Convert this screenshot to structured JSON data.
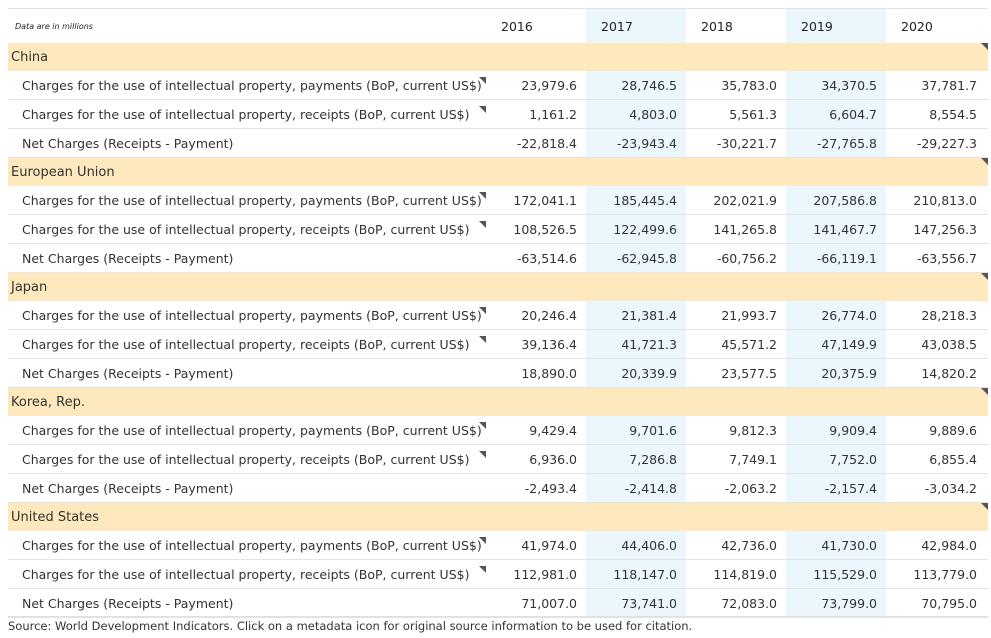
{
  "header": {
    "note": "Data are in millions",
    "years": [
      "2016",
      "2017",
      "2018",
      "2019",
      "2020"
    ]
  },
  "groups": [
    {
      "name": "China",
      "rows": [
        {
          "label": "Charges for the use of intellectual property, payments (BoP, current US$)",
          "values": [
            "23,979.6",
            "28,746.5",
            "35,783.0",
            "34,370.5",
            "37,781.7"
          ]
        },
        {
          "label": "Charges for the use of intellectual property, receipts (BoP, current US$)",
          "values": [
            "1,161.2",
            "4,803.0",
            "5,561.3",
            "6,604.7",
            "8,554.5"
          ]
        },
        {
          "label": "Net Charges (Receipts - Payment)",
          "values": [
            "-22,818.4",
            "-23,943.4",
            "-30,221.7",
            "-27,765.8",
            "-29,227.3"
          ]
        }
      ]
    },
    {
      "name": "European Union",
      "rows": [
        {
          "label": "Charges for the use of intellectual property, payments (BoP, current US$)",
          "values": [
            "172,041.1",
            "185,445.4",
            "202,021.9",
            "207,586.8",
            "210,813.0"
          ]
        },
        {
          "label": "Charges for the use of intellectual property, receipts (BoP, current US$)",
          "values": [
            "108,526.5",
            "122,499.6",
            "141,265.8",
            "141,467.7",
            "147,256.3"
          ]
        },
        {
          "label": "Net Charges (Receipts - Payment)",
          "values": [
            "-63,514.6",
            "-62,945.8",
            "-60,756.2",
            "-66,119.1",
            "-63,556.7"
          ]
        }
      ]
    },
    {
      "name": "Japan",
      "rows": [
        {
          "label": "Charges for the use of intellectual property, payments (BoP, current US$)",
          "values": [
            "20,246.4",
            "21,381.4",
            "21,993.7",
            "26,774.0",
            "28,218.3"
          ]
        },
        {
          "label": "Charges for the use of intellectual property, receipts (BoP, current US$)",
          "values": [
            "39,136.4",
            "41,721.3",
            "45,571.2",
            "47,149.9",
            "43,038.5"
          ]
        },
        {
          "label": "Net Charges (Receipts - Payment)",
          "values": [
            "18,890.0",
            "20,339.9",
            "23,577.5",
            "20,375.9",
            "14,820.2"
          ]
        }
      ]
    },
    {
      "name": "Korea, Rep.",
      "rows": [
        {
          "label": "Charges for the use of intellectual property, payments (BoP, current US$)",
          "values": [
            "9,429.4",
            "9,701.6",
            "9,812.3",
            "9,909.4",
            "9,889.6"
          ]
        },
        {
          "label": "Charges for the use of intellectual property, receipts (BoP, current US$)",
          "values": [
            "6,936.0",
            "7,286.8",
            "7,749.1",
            "7,752.0",
            "6,855.4"
          ]
        },
        {
          "label": "Net Charges (Receipts - Payment)",
          "values": [
            "-2,493.4",
            "-2,414.8",
            "-2,063.2",
            "-2,157.4",
            "-3,034.2"
          ]
        }
      ]
    },
    {
      "name": "United States",
      "rows": [
        {
          "label": "Charges for the use of intellectual property, payments (BoP, current US$)",
          "values": [
            "41,974.0",
            "44,406.0",
            "42,736.0",
            "41,730.0",
            "42,984.0"
          ]
        },
        {
          "label": "Charges for the use of intellectual property, receipts (BoP, current US$)",
          "values": [
            "112,981.0",
            "118,147.0",
            "114,819.0",
            "115,529.0",
            "113,779.0"
          ]
        },
        {
          "label": "Net Charges (Receipts - Payment)",
          "values": [
            "71,007.0",
            "73,741.0",
            "72,083.0",
            "73,799.0",
            "70,795.0"
          ]
        }
      ]
    }
  ],
  "footer": {
    "source": "Source: World Development Indicators. Click on a metadata icon for original source information to be used for citation."
  },
  "colors": {
    "group_band": "#fde9bd",
    "highlight_column": "#ecf6fd"
  }
}
